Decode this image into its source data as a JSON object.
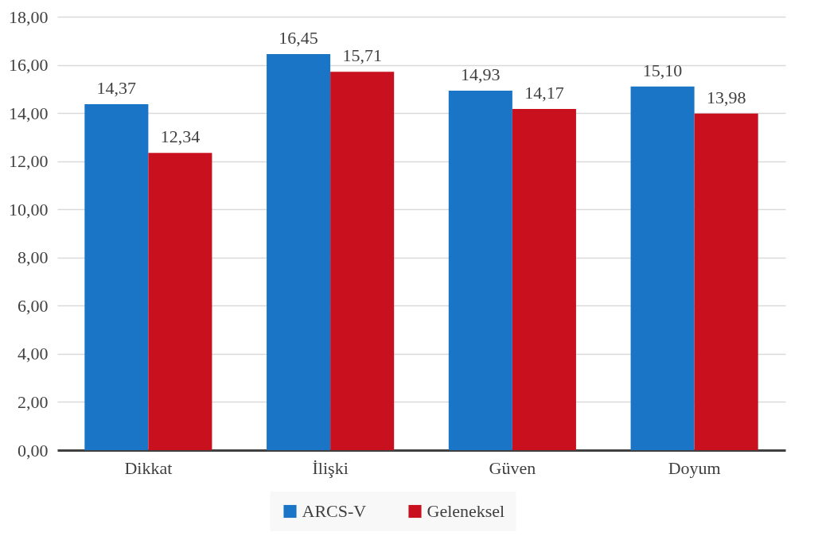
{
  "chart_data": {
    "type": "bar",
    "categories": [
      "Dikkat",
      "İlişki",
      "Güven",
      "Doyum"
    ],
    "series": [
      {
        "name": "ARCS-V",
        "color": "#1b75c6",
        "values": [
          14.37,
          16.45,
          14.93,
          15.1
        ],
        "value_labels": [
          "14,37",
          "16,45",
          "14,93",
          "15,10"
        ]
      },
      {
        "name": "Geleneksel",
        "color": "#c8101e",
        "values": [
          12.34,
          15.71,
          14.17,
          13.98
        ],
        "value_labels": [
          "12,34",
          "15,71",
          "14,17",
          "13,98"
        ]
      }
    ],
    "ylim": [
      0,
      18
    ],
    "yticks": [
      {
        "value": 0,
        "label": "0,00"
      },
      {
        "value": 2,
        "label": "2,00"
      },
      {
        "value": 4,
        "label": "4,00"
      },
      {
        "value": 6,
        "label": "6,00"
      },
      {
        "value": 8,
        "label": "8,00"
      },
      {
        "value": 10,
        "label": "10,00"
      },
      {
        "value": 12,
        "label": "12,00"
      },
      {
        "value": 14,
        "label": "14,00"
      },
      {
        "value": 16,
        "label": "16,00"
      },
      {
        "value": 18,
        "label": "18,00"
      }
    ],
    "grid": "y",
    "legend": "bottom"
  }
}
